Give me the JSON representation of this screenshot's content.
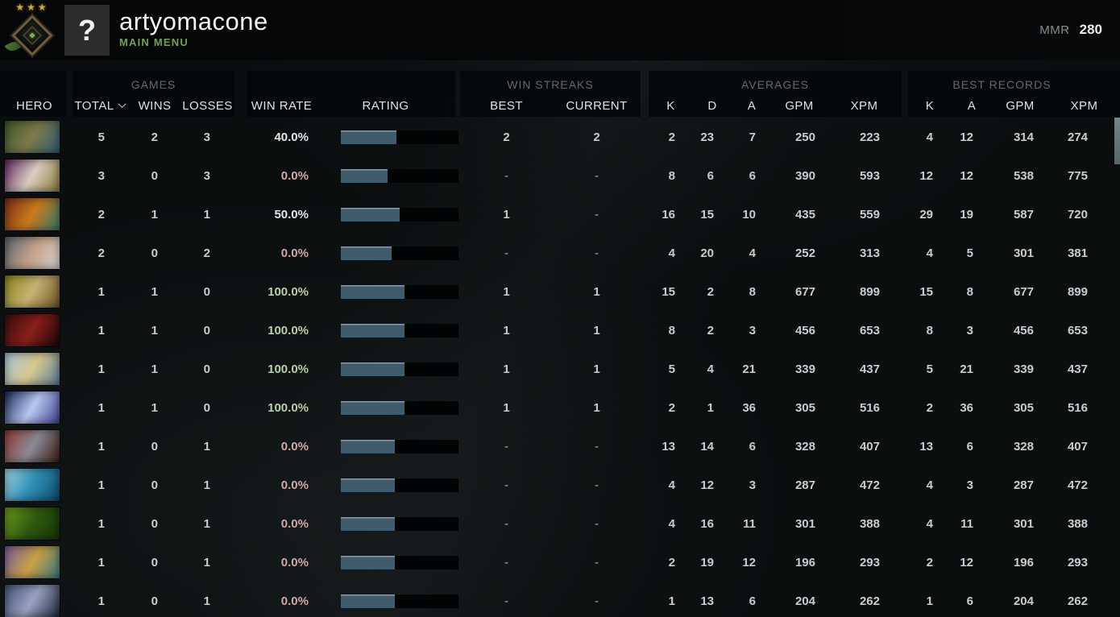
{
  "player": {
    "name": "artyomacone",
    "menu_label": "MAIN MENU",
    "avatar_glyph": "?",
    "rank_stars": "★★★",
    "mmr_label": "MMR",
    "mmr_value": "280"
  },
  "table": {
    "group_headers": {
      "games": "GAMES",
      "win_streaks": "WIN STREAKS",
      "averages": "AVERAGES",
      "best_records": "BEST RECORDS"
    },
    "column_headers": {
      "hero": "HERO",
      "total": "TOTAL",
      "sort_indicator_icon": "chevron-down",
      "wins": "WINS",
      "losses": "LOSSES",
      "win_rate": "WIN RATE",
      "rating": "RATING",
      "best": "BEST",
      "current": "CURRENT",
      "kills": "K",
      "deaths": "D",
      "assists": "A",
      "gpm": "GPM",
      "xpm": "XPM",
      "record_kills": "K",
      "record_assists": "A",
      "record_gpm": "GPM",
      "record_xpm": "XPM"
    },
    "rows": [
      {
        "hero": "hero-1",
        "portrait_colors": [
          "#3f5a28",
          "#7d7a4a",
          "#2f5d75"
        ],
        "total": "5",
        "wins": "2",
        "losses": "3",
        "win_rate": "40.0%",
        "win_rate_tone": "neutral",
        "rating_fill": 0.47,
        "streak_best": "2",
        "streak_current": "2",
        "kills": "2",
        "deaths": "23",
        "assists": "7",
        "gpm": "250",
        "xpm": "223",
        "record_kills": "4",
        "record_assists": "12",
        "record_gpm": "314",
        "record_xpm": "274"
      },
      {
        "hero": "hero-2",
        "portrait_colors": [
          "#63265e",
          "#d9cfc2",
          "#8a7a33"
        ],
        "total": "3",
        "wins": "0",
        "losses": "3",
        "win_rate": "0.0%",
        "win_rate_tone": "negative",
        "rating_fill": 0.4,
        "streak_best": "-",
        "streak_current": "-",
        "kills": "8",
        "deaths": "6",
        "assists": "6",
        "gpm": "390",
        "xpm": "593",
        "record_kills": "12",
        "record_assists": "12",
        "record_gpm": "538",
        "record_xpm": "775"
      },
      {
        "hero": "hero-3",
        "portrait_colors": [
          "#7a2c12",
          "#c97a1e",
          "#2e7d6e"
        ],
        "total": "2",
        "wins": "1",
        "losses": "1",
        "win_rate": "50.0%",
        "win_rate_tone": "neutral",
        "rating_fill": 0.5,
        "streak_best": "1",
        "streak_current": "-",
        "kills": "16",
        "deaths": "15",
        "assists": "10",
        "gpm": "435",
        "xpm": "559",
        "record_kills": "29",
        "record_assists": "19",
        "record_gpm": "587",
        "record_xpm": "720"
      },
      {
        "hero": "hero-4",
        "portrait_colors": [
          "#55646e",
          "#c5a08a",
          "#d8d8d4"
        ],
        "total": "2",
        "wins": "0",
        "losses": "2",
        "win_rate": "0.0%",
        "win_rate_tone": "negative",
        "rating_fill": 0.43,
        "streak_best": "-",
        "streak_current": "-",
        "kills": "4",
        "deaths": "20",
        "assists": "4",
        "gpm": "252",
        "xpm": "313",
        "record_kills": "4",
        "record_assists": "5",
        "record_gpm": "301",
        "record_xpm": "381"
      },
      {
        "hero": "hero-5",
        "portrait_colors": [
          "#8a8618",
          "#c8b273",
          "#6b5526"
        ],
        "total": "1",
        "wins": "1",
        "losses": "0",
        "win_rate": "100.0%",
        "win_rate_tone": "positive",
        "rating_fill": 0.54,
        "streak_best": "1",
        "streak_current": "1",
        "kills": "15",
        "deaths": "2",
        "assists": "8",
        "gpm": "677",
        "xpm": "899",
        "record_kills": "15",
        "record_assists": "8",
        "record_gpm": "677",
        "record_xpm": "899"
      },
      {
        "hero": "hero-6",
        "portrait_colors": [
          "#3a0d0d",
          "#8a1f1a",
          "#180808"
        ],
        "total": "1",
        "wins": "1",
        "losses": "0",
        "win_rate": "100.0%",
        "win_rate_tone": "positive",
        "rating_fill": 0.54,
        "streak_best": "1",
        "streak_current": "1",
        "kills": "8",
        "deaths": "2",
        "assists": "3",
        "gpm": "456",
        "xpm": "653",
        "record_kills": "8",
        "record_assists": "3",
        "record_gpm": "456",
        "record_xpm": "653"
      },
      {
        "hero": "hero-7",
        "portrait_colors": [
          "#a8c4d8",
          "#d8c98e",
          "#5a7ba0"
        ],
        "total": "1",
        "wins": "1",
        "losses": "0",
        "win_rate": "100.0%",
        "win_rate_tone": "positive",
        "rating_fill": 0.54,
        "streak_best": "1",
        "streak_current": "1",
        "kills": "5",
        "deaths": "4",
        "assists": "21",
        "gpm": "339",
        "xpm": "437",
        "record_kills": "5",
        "record_assists": "21",
        "record_gpm": "339",
        "record_xpm": "437"
      },
      {
        "hero": "hero-8",
        "portrait_colors": [
          "#1c2a5e",
          "#b8c8f0",
          "#41418e"
        ],
        "total": "1",
        "wins": "1",
        "losses": "0",
        "win_rate": "100.0%",
        "win_rate_tone": "positive",
        "rating_fill": 0.54,
        "streak_best": "1",
        "streak_current": "1",
        "kills": "2",
        "deaths": "1",
        "assists": "36",
        "gpm": "305",
        "xpm": "516",
        "record_kills": "2",
        "record_assists": "36",
        "record_gpm": "305",
        "record_xpm": "516"
      },
      {
        "hero": "hero-9",
        "portrait_colors": [
          "#8e3a32",
          "#8a8a96",
          "#3a1c14"
        ],
        "total": "1",
        "wins": "0",
        "losses": "1",
        "win_rate": "0.0%",
        "win_rate_tone": "negative",
        "rating_fill": 0.46,
        "streak_best": "-",
        "streak_current": "-",
        "kills": "13",
        "deaths": "14",
        "assists": "6",
        "gpm": "328",
        "xpm": "407",
        "record_kills": "13",
        "record_assists": "6",
        "record_gpm": "328",
        "record_xpm": "407"
      },
      {
        "hero": "hero-10",
        "portrait_colors": [
          "#9ed4e4",
          "#2e8fb4",
          "#0e4a66"
        ],
        "total": "1",
        "wins": "0",
        "losses": "1",
        "win_rate": "0.0%",
        "win_rate_tone": "negative",
        "rating_fill": 0.46,
        "streak_best": "-",
        "streak_current": "-",
        "kills": "4",
        "deaths": "12",
        "assists": "3",
        "gpm": "287",
        "xpm": "472",
        "record_kills": "4",
        "record_assists": "3",
        "record_gpm": "287",
        "record_xpm": "472"
      },
      {
        "hero": "hero-11",
        "portrait_colors": [
          "#6d9c1e",
          "#2e5a10",
          "#163308"
        ],
        "total": "1",
        "wins": "0",
        "losses": "1",
        "win_rate": "0.0%",
        "win_rate_tone": "negative",
        "rating_fill": 0.46,
        "streak_best": "-",
        "streak_current": "-",
        "kills": "4",
        "deaths": "16",
        "assists": "11",
        "gpm": "301",
        "xpm": "388",
        "record_kills": "4",
        "record_assists": "11",
        "record_gpm": "301",
        "record_xpm": "388"
      },
      {
        "hero": "hero-12",
        "portrait_colors": [
          "#7a5a9e",
          "#c8a245",
          "#3a7a86"
        ],
        "total": "1",
        "wins": "0",
        "losses": "1",
        "win_rate": "0.0%",
        "win_rate_tone": "negative",
        "rating_fill": 0.46,
        "streak_best": "-",
        "streak_current": "-",
        "kills": "2",
        "deaths": "19",
        "assists": "12",
        "gpm": "196",
        "xpm": "293",
        "record_kills": "2",
        "record_assists": "12",
        "record_gpm": "196",
        "record_xpm": "293"
      },
      {
        "hero": "hero-13",
        "portrait_colors": [
          "#44547a",
          "#9aa2c0",
          "#1e2a3e"
        ],
        "total": "1",
        "wins": "0",
        "losses": "1",
        "win_rate": "0.0%",
        "win_rate_tone": "negative",
        "rating_fill": 0.46,
        "streak_best": "-",
        "streak_current": "-",
        "kills": "1",
        "deaths": "13",
        "assists": "6",
        "gpm": "204",
        "xpm": "262",
        "record_kills": "1",
        "record_assists": "6",
        "record_gpm": "204",
        "record_xpm": "262"
      }
    ]
  },
  "colors": {
    "rating_bar_fill": "#3e5c6c",
    "win_rate_positive": "#b9cfa4",
    "win_rate_negative": "#d2a7a7",
    "menu_green": "#74a153"
  }
}
